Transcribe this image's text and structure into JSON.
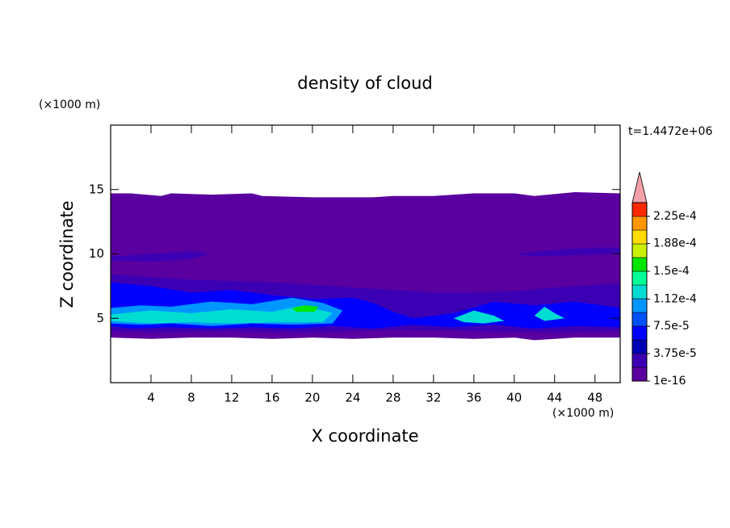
{
  "chart_data": {
    "type": "contour",
    "title": "density of cloud",
    "xlabel": "X coordinate",
    "ylabel": "Z coordinate",
    "x_unit": "(×1000 m)",
    "y_unit": "(×1000 m)",
    "time_label": "t=1.4472e+06",
    "xlim": [
      0,
      50.5
    ],
    "ylim": [
      0,
      20
    ],
    "xticks": [
      4,
      8,
      12,
      16,
      20,
      24,
      28,
      32,
      36,
      40,
      44,
      48
    ],
    "yticks": [
      5,
      10,
      15
    ],
    "colors": [
      "#5a00a0",
      "#3c00b4",
      "#0000b4",
      "#0000ff",
      "#0050ff",
      "#0096ff",
      "#00dcd2",
      "#00ff96",
      "#00e600",
      "#c8f000",
      "#ffdc00",
      "#ff9600",
      "#ff2800"
    ],
    "extend_color": "#f4a0a8",
    "levels": [
      1e-16,
      {
        "value": 3.75e-05,
        "label": "3.75e-5"
      },
      {
        "value": 7.5e-05,
        "label": "7.5e-5"
      },
      {
        "value": 0.000112,
        "label": "1.12e-4"
      },
      {
        "value": 0.00015,
        "label": "1.5e-4"
      },
      {
        "value": 0.000188,
        "label": "1.88e-4"
      },
      {
        "value": 0.000225,
        "label": "2.25e-4"
      }
    ],
    "contours": [
      {
        "level": 0,
        "x": [
          0,
          2,
          5,
          6,
          10,
          14,
          15,
          20,
          26,
          28,
          32,
          36,
          40,
          42,
          46,
          50.5,
          50.5,
          46,
          42,
          40,
          36,
          32,
          28,
          24,
          20,
          16,
          12,
          8,
          4,
          0
        ],
        "z": [
          14.7,
          14.7,
          14.5,
          14.7,
          14.6,
          14.7,
          14.5,
          14.4,
          14.4,
          14.5,
          14.5,
          14.7,
          14.7,
          14.5,
          14.8,
          14.7,
          3.5,
          3.5,
          3.3,
          3.5,
          3.4,
          3.5,
          3.5,
          3.4,
          3.5,
          3.4,
          3.5,
          3.5,
          3.4,
          3.5
        ]
      },
      {
        "level": 1,
        "x": [
          0,
          4,
          8,
          12,
          16,
          20,
          24,
          28,
          32,
          36,
          40,
          44,
          48,
          50.5,
          50.5,
          44,
          36,
          28,
          20,
          12,
          4,
          0
        ],
        "z": [
          8.4,
          8.2,
          8.0,
          7.9,
          7.8,
          7.6,
          7.4,
          7.2,
          7.0,
          7.0,
          7.1,
          7.4,
          7.6,
          7.7,
          4.0,
          3.9,
          4.0,
          4.1,
          3.9,
          4.0,
          3.9,
          4.0
        ]
      },
      {
        "level": 1,
        "x": [
          0,
          4,
          8,
          10,
          8,
          4,
          0
        ],
        "z": [
          9.8,
          10.0,
          10.2,
          10.0,
          9.6,
          9.4,
          9.5
        ]
      },
      {
        "level": 1,
        "x": [
          40,
          44,
          48,
          50.5,
          50.5,
          46,
          42
        ],
        "z": [
          10.0,
          10.3,
          10.5,
          10.5,
          10.0,
          9.9,
          9.8
        ]
      },
      {
        "level": 3,
        "x": [
          0,
          4,
          8,
          12,
          16,
          20,
          24,
          26,
          28,
          30,
          34,
          38,
          42,
          46,
          50.5,
          50.5,
          46,
          42,
          38,
          34,
          30,
          26,
          22,
          18,
          14,
          10,
          6,
          2,
          0
        ],
        "z": [
          7.8,
          7.5,
          7.0,
          7.2,
          6.8,
          6.5,
          6.6,
          6.2,
          5.5,
          5.0,
          5.4,
          6.3,
          6.0,
          6.3,
          5.8,
          4.3,
          4.4,
          4.2,
          4.5,
          4.3,
          4.5,
          4.2,
          4.4,
          4.2,
          4.3,
          4.2,
          4.3,
          4.2,
          4.4
        ]
      },
      {
        "level": 5,
        "x": [
          0,
          3,
          6,
          10,
          14,
          18,
          21,
          23,
          22,
          18,
          14,
          10,
          6,
          3,
          0
        ],
        "z": [
          5.8,
          6.0,
          5.9,
          6.3,
          6.1,
          6.6,
          6.2,
          5.6,
          4.6,
          4.5,
          4.6,
          4.4,
          4.6,
          4.5,
          4.6
        ]
      },
      {
        "level": 6,
        "x": [
          0,
          4,
          8,
          12,
          16,
          19,
          22,
          21,
          17,
          12,
          8,
          4,
          0
        ],
        "z": [
          5.3,
          5.6,
          5.4,
          5.7,
          5.5,
          6.0,
          5.4,
          4.7,
          4.7,
          4.6,
          4.7,
          4.6,
          4.8
        ]
      },
      {
        "level": 6,
        "x": [
          34,
          36,
          38,
          39,
          37,
          35
        ],
        "z": [
          5.0,
          5.6,
          5.2,
          4.8,
          4.6,
          4.7
        ]
      },
      {
        "level": 6,
        "x": [
          42,
          43,
          44,
          45,
          43
        ],
        "z": [
          5.2,
          5.9,
          5.4,
          5.0,
          4.8
        ]
      },
      {
        "level": 8,
        "x": [
          18,
          19.2,
          20.6,
          20.2,
          18.4
        ],
        "z": [
          5.8,
          6.0,
          5.9,
          5.5,
          5.5
        ]
      }
    ]
  }
}
